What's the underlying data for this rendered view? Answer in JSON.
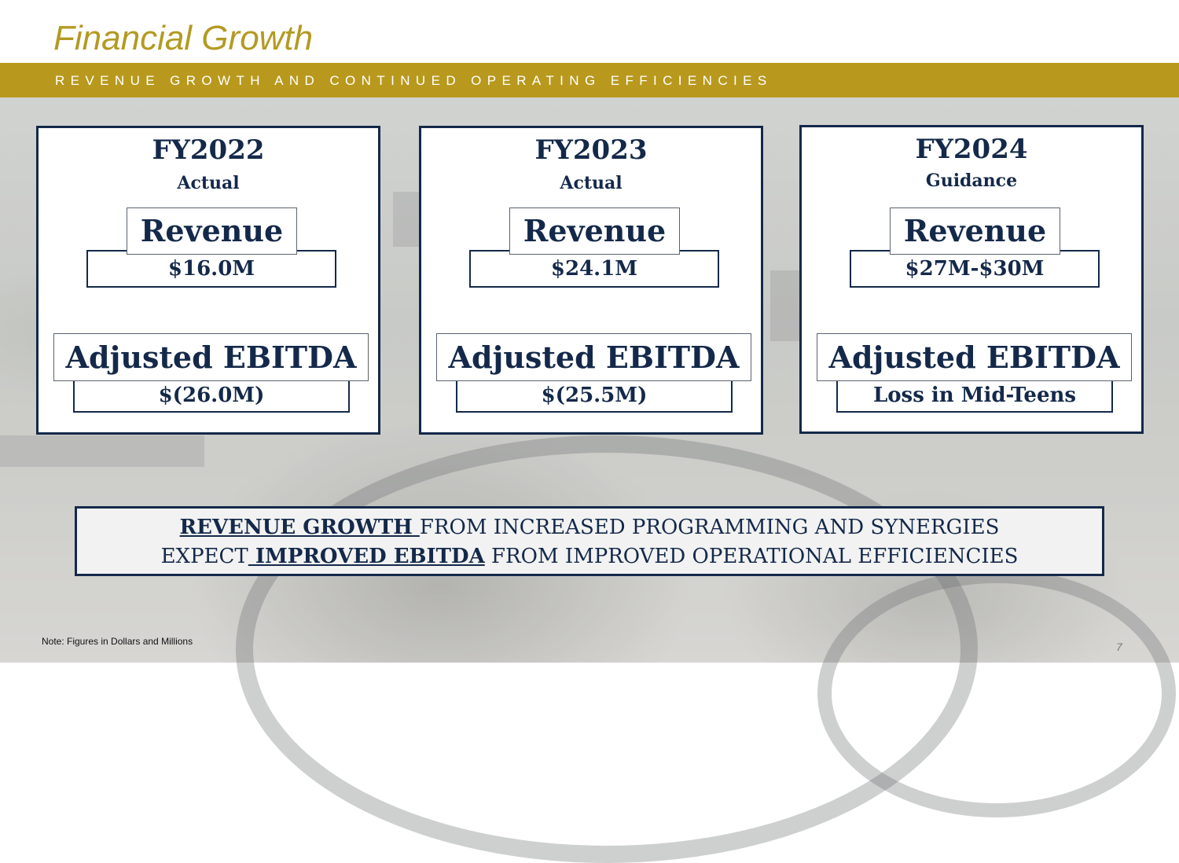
{
  "header": {
    "title": "Financial Growth",
    "subtitle": "REVENUE GROWTH AND CONTINUED OPERATING EFFICIENCIES"
  },
  "cards": [
    {
      "year": "FY2022",
      "status": "Actual",
      "revenue_label": "Revenue",
      "revenue_value": "$16.0M",
      "ebitda_label": "Adjusted EBITDA",
      "ebitda_value": "$(26.0M)"
    },
    {
      "year": "FY2023",
      "status": "Actual",
      "revenue_label": "Revenue",
      "revenue_value": "$24.1M",
      "ebitda_label": "Adjusted EBITDA",
      "ebitda_value": "$(25.5M)"
    },
    {
      "year": "FY2024",
      "status": "Guidance",
      "revenue_label": "Revenue",
      "revenue_value": "$27M-$30M",
      "ebitda_label": "Adjusted EBITDA",
      "ebitda_value": "Loss in Mid-Teens"
    }
  ],
  "summary": {
    "line1_emphasis": "REVENUE GROWTH ",
    "line1_rest": "FROM INCREASED PROGRAMMING AND SYNERGIES",
    "line2_prefix": "EXPECT",
    "line2_emphasis": " IMPROVED EBITDA",
    "line2_rest": " FROM IMPROVED OPERATIONAL EFFICIENCIES"
  },
  "footer": {
    "note": "Note: Figures in Dollars and Millions",
    "page_number": "7"
  },
  "colors": {
    "gold": "#b8991e",
    "navy": "#14294a"
  }
}
